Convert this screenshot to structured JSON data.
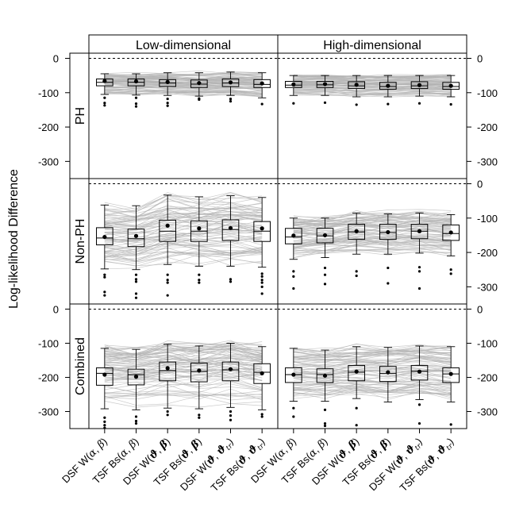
{
  "chart_data": {
    "type": "box",
    "ylabel": "Log-likelihood Difference",
    "columns": [
      "Low-dimensional",
      "High-dimensional"
    ],
    "rows": [
      "PH",
      "Non-PH",
      "Combined"
    ],
    "categories": [
      {
        "pre": "DSF W(",
        "g1": "α",
        "sep": ", ",
        "g2": "β",
        "post": ")",
        "bold": false,
        "sub": ""
      },
      {
        "pre": "TSF Bs(",
        "g1": "α",
        "sep": ", ",
        "g2": "β",
        "post": ")",
        "bold": false,
        "sub": ""
      },
      {
        "pre": "DSF W(",
        "g1": "ϑ",
        "sep": ", ",
        "g2": "β",
        "post": ")",
        "bold": true,
        "sub": ""
      },
      {
        "pre": "TSF Bs(",
        "g1": "ϑ",
        "sep": ", ",
        "g2": "β",
        "post": ")",
        "bold": true,
        "sub": ""
      },
      {
        "pre": "DSF W(",
        "g1": "ϑ",
        "sep": ", ",
        "g2": "ϑ",
        "post": ")",
        "bold": true,
        "sub": "tr"
      },
      {
        "pre": "TSF Bs(",
        "g1": "ϑ",
        "sep": ", ",
        "g2": "ϑ",
        "post": ")",
        "bold": true,
        "sub": "tr"
      }
    ],
    "ylim": [
      -350,
      15
    ],
    "yticks": [
      0,
      -100,
      -200,
      -300
    ],
    "reference_line": 0,
    "panels": [
      {
        "row": "PH",
        "column": "Low-dimensional",
        "y_axis": "left",
        "boxes": [
          {
            "q1": -80,
            "median": -70,
            "q3": -60,
            "whisker_low": -105,
            "whisker_high": -45,
            "mean": -66,
            "outliers": [
              -115,
              -130,
              -137
            ]
          },
          {
            "q1": -80,
            "median": -70,
            "q3": -60,
            "whisker_low": -107,
            "whisker_high": -45,
            "mean": -67,
            "outliers": [
              -115,
              -132,
              -140
            ]
          },
          {
            "q1": -82,
            "median": -72,
            "q3": -62,
            "whisker_low": -108,
            "whisker_high": -42,
            "mean": -69,
            "outliers": [
              -118,
              -130,
              -138
            ]
          },
          {
            "q1": -85,
            "median": -75,
            "q3": -63,
            "whisker_low": -110,
            "whisker_high": -42,
            "mean": -72,
            "outliers": [
              -117,
              -120
            ]
          },
          {
            "q1": -82,
            "median": -72,
            "q3": -60,
            "whisker_low": -108,
            "whisker_high": -40,
            "mean": -70,
            "outliers": [
              -118,
              -125
            ]
          },
          {
            "q1": -85,
            "median": -76,
            "q3": -62,
            "whisker_low": -115,
            "whisker_high": -42,
            "mean": -73,
            "outliers": [
              -133
            ]
          }
        ]
      },
      {
        "row": "PH",
        "column": "High-dimensional",
        "y_axis": "right",
        "boxes": [
          {
            "q1": -85,
            "median": -78,
            "q3": -67,
            "whisker_low": -108,
            "whisker_high": -50,
            "mean": -76,
            "outliers": [
              -131
            ]
          },
          {
            "q1": -85,
            "median": -77,
            "q3": -67,
            "whisker_low": -108,
            "whisker_high": -50,
            "mean": -75,
            "outliers": [
              -129
            ]
          },
          {
            "q1": -88,
            "median": -80,
            "q3": -68,
            "whisker_low": -112,
            "whisker_high": -50,
            "mean": -77,
            "outliers": [
              -135
            ]
          },
          {
            "q1": -90,
            "median": -82,
            "q3": -70,
            "whisker_low": -112,
            "whisker_high": -50,
            "mean": -80,
            "outliers": [
              -133
            ]
          },
          {
            "q1": -88,
            "median": -80,
            "q3": -68,
            "whisker_low": -110,
            "whisker_high": -50,
            "mean": -78,
            "outliers": [
              -131
            ]
          },
          {
            "q1": -90,
            "median": -82,
            "q3": -70,
            "whisker_low": -112,
            "whisker_high": -50,
            "mean": -80,
            "outliers": [
              -134
            ]
          }
        ]
      },
      {
        "row": "Non-PH",
        "column": "Low-dimensional",
        "y_axis": "none",
        "boxes": [
          {
            "q1": -178,
            "median": -158,
            "q3": -128,
            "whisker_low": -248,
            "whisker_high": -62,
            "mean": -155,
            "outliers": [
              -265,
              -272,
              -315,
              -325
            ]
          },
          {
            "q1": -183,
            "median": -160,
            "q3": -132,
            "whisker_low": -250,
            "whisker_high": -64,
            "mean": -152,
            "outliers": [
              -265,
              -278,
              -285,
              -320,
              -332
            ]
          },
          {
            "q1": -168,
            "median": -138,
            "q3": -106,
            "whisker_low": -235,
            "whisker_high": -33,
            "mean": -122,
            "outliers": [
              -265,
              -280,
              -288,
              -325
            ]
          },
          {
            "q1": -168,
            "median": -138,
            "q3": -108,
            "whisker_low": -240,
            "whisker_high": -38,
            "mean": -130,
            "outliers": [
              -265,
              -280,
              -288
            ]
          },
          {
            "q1": -165,
            "median": -133,
            "q3": -105,
            "whisker_low": -240,
            "whisker_high": -35,
            "mean": -129,
            "outliers": [
              -278,
              -285
            ]
          },
          {
            "q1": -168,
            "median": -138,
            "q3": -110,
            "whisker_low": -243,
            "whisker_high": -40,
            "mean": -130,
            "outliers": [
              -262,
              -270,
              -280,
              -288,
              -300,
              -320
            ]
          }
        ]
      },
      {
        "row": "Non-PH",
        "column": "High-dimensional",
        "y_axis": "right",
        "boxes": [
          {
            "q1": -175,
            "median": -155,
            "q3": -130,
            "whisker_low": -220,
            "whisker_high": -100,
            "mean": -151,
            "outliers": [
              -255,
              -270,
              -305
            ]
          },
          {
            "q1": -172,
            "median": -152,
            "q3": -130,
            "whisker_low": -215,
            "whisker_high": -100,
            "mean": -150,
            "outliers": [
              -245,
              -265,
              -292
            ]
          },
          {
            "q1": -162,
            "median": -140,
            "q3": -118,
            "whisker_low": -205,
            "whisker_high": -85,
            "mean": -138,
            "outliers": [
              -255,
              -268
            ]
          },
          {
            "q1": -162,
            "median": -142,
            "q3": -118,
            "whisker_low": -205,
            "whisker_high": -88,
            "mean": -141,
            "outliers": [
              -245,
              -290
            ]
          },
          {
            "q1": -160,
            "median": -138,
            "q3": -118,
            "whisker_low": -202,
            "whisker_high": -85,
            "mean": -138,
            "outliers": [
              -243,
              -255,
              -305
            ]
          },
          {
            "q1": -165,
            "median": -145,
            "q3": -120,
            "whisker_low": -210,
            "whisker_high": -90,
            "mean": -142,
            "outliers": [
              -250,
              -262
            ]
          }
        ]
      },
      {
        "row": "Combined",
        "column": "Low-dimensional",
        "y_axis": "left",
        "boxes": [
          {
            "q1": -223,
            "median": -188,
            "q3": -172,
            "whisker_low": -292,
            "whisker_high": -115,
            "mean": -192,
            "outliers": [
              -318,
              -330,
              -340,
              -348
            ]
          },
          {
            "q1": -222,
            "median": -192,
            "q3": -176,
            "whisker_low": -295,
            "whisker_high": -118,
            "mean": -198,
            "outliers": [
              -315,
              -328,
              -335
            ]
          },
          {
            "q1": -210,
            "median": -180,
            "q3": -155,
            "whisker_low": -290,
            "whisker_high": -103,
            "mean": -173,
            "outliers": [
              -300,
              -310
            ]
          },
          {
            "q1": -213,
            "median": -183,
            "q3": -158,
            "whisker_low": -292,
            "whisker_high": -108,
            "mean": -180,
            "outliers": [
              -310,
              -318
            ]
          },
          {
            "q1": -210,
            "median": -178,
            "q3": -155,
            "whisker_low": -288,
            "whisker_high": -100,
            "mean": -176,
            "outliers": [
              -300,
              -312,
              -325
            ]
          },
          {
            "q1": -218,
            "median": -185,
            "q3": -160,
            "whisker_low": -295,
            "whisker_high": -110,
            "mean": -188,
            "outliers": [
              -308,
              -315
            ]
          }
        ]
      },
      {
        "row": "Combined",
        "column": "High-dimensional",
        "y_axis": "right",
        "boxes": [
          {
            "q1": -215,
            "median": -192,
            "q3": -172,
            "whisker_low": -270,
            "whisker_high": -115,
            "mean": -192,
            "outliers": [
              -290,
              -315
            ]
          },
          {
            "q1": -215,
            "median": -192,
            "q3": -175,
            "whisker_low": -270,
            "whisker_high": -120,
            "mean": -195,
            "outliers": [
              -295,
              -335,
              -342
            ]
          },
          {
            "q1": -210,
            "median": -185,
            "q3": -165,
            "whisker_low": -262,
            "whisker_high": -110,
            "mean": -183,
            "outliers": [
              -290,
              -340
            ]
          },
          {
            "q1": -212,
            "median": -188,
            "q3": -168,
            "whisker_low": -272,
            "whisker_high": -112,
            "mean": -185,
            "outliers": []
          },
          {
            "q1": -208,
            "median": -182,
            "q3": -165,
            "whisker_low": -265,
            "whisker_high": -108,
            "mean": -183,
            "outliers": [
              -280,
              -335
            ]
          },
          {
            "q1": -215,
            "median": -190,
            "q3": -172,
            "whisker_low": -272,
            "whisker_high": -110,
            "mean": -190,
            "outliers": [
              -338
            ]
          }
        ]
      }
    ],
    "colors": {
      "box": "#000000",
      "lines": "#b3b3b3",
      "reference": "#000000",
      "strip_bg": "#ffffff"
    }
  }
}
